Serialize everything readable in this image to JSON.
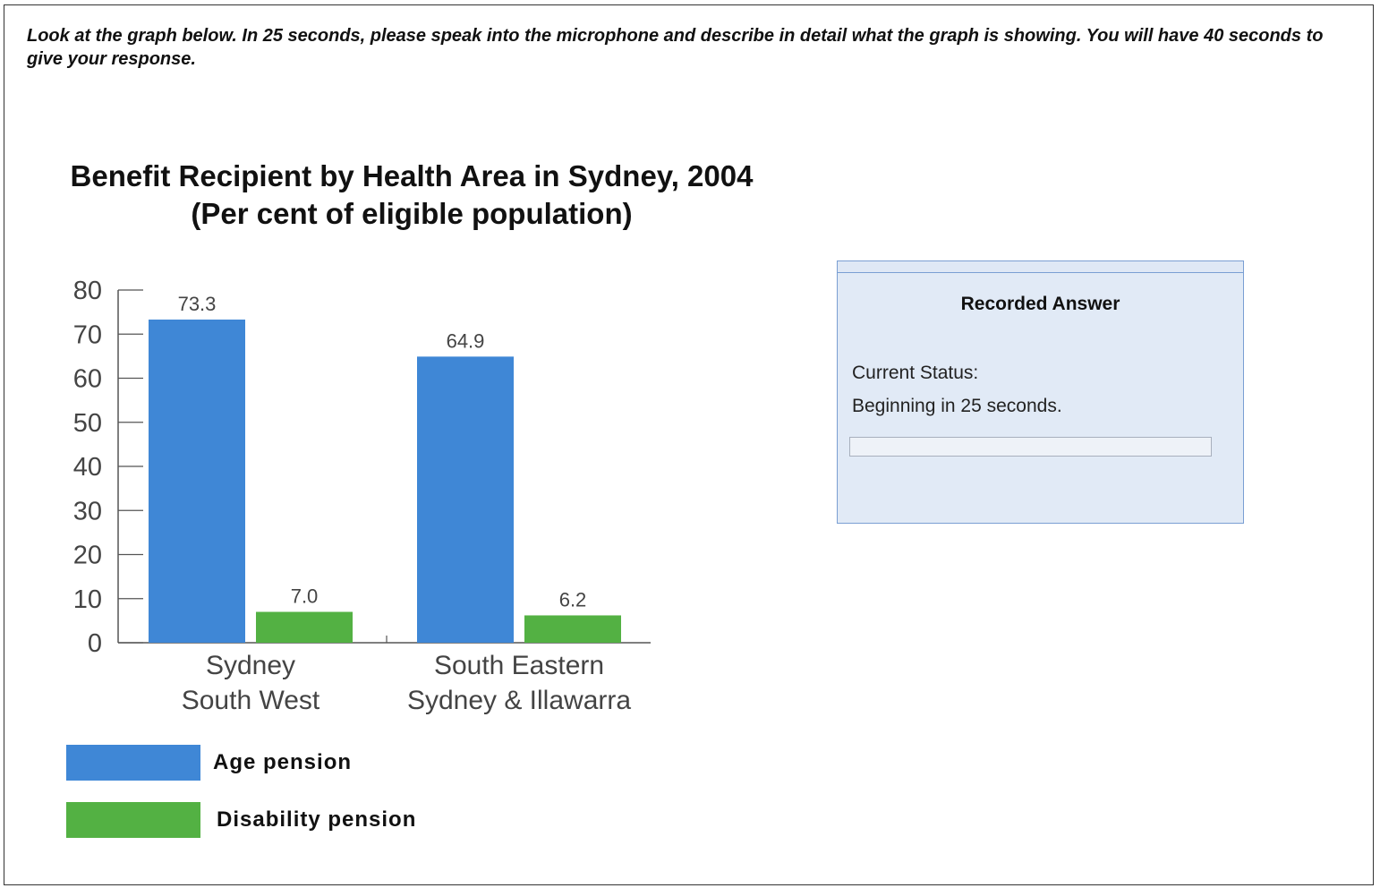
{
  "instructions": "Look at the graph below. In 25 seconds, please speak into the microphone and describe in detail what the graph is showing. You will have 40 seconds to give your response.",
  "colors": {
    "age_pension": "#3f87d6",
    "disability_pension": "#53b143"
  },
  "chart_data": {
    "type": "bar",
    "title": "Benefit Recipient by Health Area in Sydney, 2004",
    "subtitle": "(Per cent of eligible population)",
    "categories": [
      [
        "Sydney",
        "South West"
      ],
      [
        "South Eastern",
        "Sydney & Illawarra"
      ]
    ],
    "series": [
      {
        "name": "Age pension",
        "values": [
          73.3,
          64.9
        ],
        "labels": [
          "73.3",
          "64.9"
        ]
      },
      {
        "name": "Disability pension",
        "values": [
          7.0,
          6.2
        ],
        "labels": [
          "7.0",
          "6.2"
        ]
      }
    ],
    "ylim": [
      0,
      80
    ],
    "yticks": [
      0,
      10,
      20,
      30,
      40,
      50,
      60,
      70,
      80
    ],
    "grid": false,
    "legend": "bottom-left"
  },
  "panel": {
    "title": "Recorded Answer",
    "status_label": "Current Status:",
    "status_text": "Beginning in 25 seconds.",
    "progress": 0
  }
}
